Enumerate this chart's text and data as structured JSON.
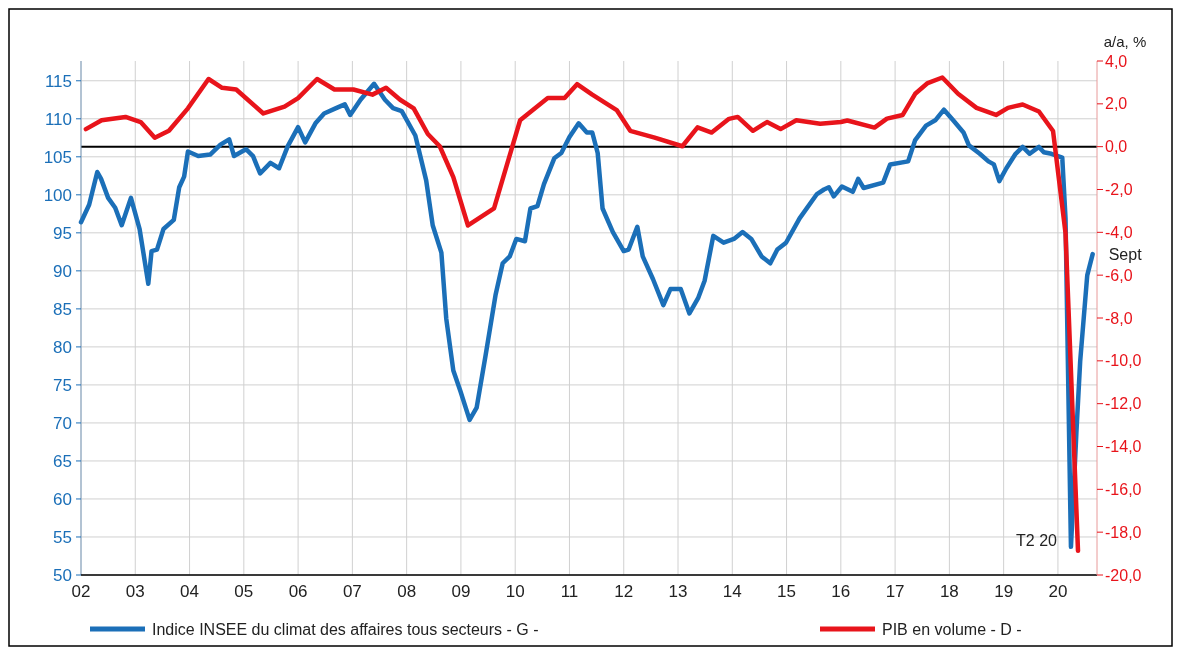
{
  "chart_data": {
    "type": "line",
    "y2label": "a/a, %",
    "xlim": [
      2002,
      2020.72
    ],
    "xticks": [
      {
        "value": 2002,
        "label": "02"
      },
      {
        "value": 2003,
        "label": "03"
      },
      {
        "value": 2004,
        "label": "04"
      },
      {
        "value": 2005,
        "label": "05"
      },
      {
        "value": 2006,
        "label": "06"
      },
      {
        "value": 2007,
        "label": "07"
      },
      {
        "value": 2008,
        "label": "08"
      },
      {
        "value": 2009,
        "label": "09"
      },
      {
        "value": 2010,
        "label": "10"
      },
      {
        "value": 2011,
        "label": "11"
      },
      {
        "value": 2012,
        "label": "12"
      },
      {
        "value": 2013,
        "label": "13"
      },
      {
        "value": 2014,
        "label": "14"
      },
      {
        "value": 2015,
        "label": "15"
      },
      {
        "value": 2016,
        "label": "16"
      },
      {
        "value": 2017,
        "label": "17"
      },
      {
        "value": 2018,
        "label": "18"
      },
      {
        "value": 2019,
        "label": "19"
      },
      {
        "value": 2020,
        "label": "20"
      }
    ],
    "ylim": [
      50,
      117.6
    ],
    "yticks": [
      50,
      55,
      60,
      65,
      70,
      75,
      80,
      85,
      90,
      95,
      100,
      105,
      110,
      115
    ],
    "y2lim": [
      -20,
      4
    ],
    "y2ticks": [
      {
        "value": -20,
        "label": "-20,0"
      },
      {
        "value": -18,
        "label": "-18,0"
      },
      {
        "value": -16,
        "label": "-16,0"
      },
      {
        "value": -14,
        "label": "-14,0"
      },
      {
        "value": -12,
        "label": "-12,0"
      },
      {
        "value": -10,
        "label": "-10,0"
      },
      {
        "value": -8,
        "label": "-8,0"
      },
      {
        "value": -6,
        "label": "-6,0"
      },
      {
        "value": -4,
        "label": "-4,0"
      },
      {
        "value": -2,
        "label": "-2,0"
      },
      {
        "value": 0,
        "label": "0,0"
      },
      {
        "value": 2,
        "label": "2,0"
      },
      {
        "value": 4,
        "label": "4,0"
      }
    ],
    "grid": true,
    "legend": "bottom",
    "ref_lines": [
      {
        "axis": "y2",
        "value": 0,
        "color": "#000000"
      }
    ],
    "annotations": [
      {
        "text": "Sept",
        "x": 2020.64,
        "y": 92.2
      },
      {
        "text": "T2 20",
        "x": 2020.24,
        "y": 53.7
      }
    ],
    "series": [
      {
        "name": "Indice INSEE du climat des affaires tous secteurs - G -",
        "color": "#1b6fb8",
        "x": [
          2002.0,
          2002.15,
          2002.3,
          2002.37,
          2002.5,
          2002.63,
          2002.75,
          2002.92,
          2003.08,
          2003.24,
          2003.3,
          2003.4,
          2003.52,
          2003.71,
          2003.81,
          2003.9,
          2003.97,
          2004.16,
          2004.38,
          2004.57,
          2004.73,
          2004.82,
          2005.04,
          2005.17,
          2005.3,
          2005.49,
          2005.65,
          2005.81,
          2006.0,
          2006.13,
          2006.32,
          2006.48,
          2006.7,
          2006.86,
          2006.96,
          2007.15,
          2007.4,
          2007.6,
          2007.75,
          2007.91,
          2008.16,
          2008.36,
          2008.48,
          2008.64,
          2008.73,
          2008.86,
          2008.99,
          2009.16,
          2009.29,
          2009.45,
          2009.64,
          2009.77,
          2009.9,
          2010.02,
          2010.18,
          2010.28,
          2010.41,
          2010.53,
          2010.72,
          2010.85,
          2011.0,
          2011.17,
          2011.32,
          2011.42,
          2011.52,
          2011.61,
          2011.8,
          2012.0,
          2012.09,
          2012.25,
          2012.35,
          2012.54,
          2012.73,
          2012.86,
          2013.05,
          2013.21,
          2013.37,
          2013.49,
          2013.65,
          2013.84,
          2014.03,
          2014.19,
          2014.35,
          2014.54,
          2014.7,
          2014.83,
          2014.99,
          2015.24,
          2015.56,
          2015.69,
          2015.78,
          2015.87,
          2016.02,
          2016.22,
          2016.32,
          2016.42,
          2016.78,
          2016.91,
          2017.24,
          2017.37,
          2017.57,
          2017.74,
          2017.9,
          2018.07,
          2018.26,
          2018.36,
          2018.56,
          2018.72,
          2018.82,
          2018.92,
          2019.05,
          2019.22,
          2019.35,
          2019.48,
          2019.65,
          2019.74,
          2019.88,
          2020.08,
          2020.14,
          2020.24,
          2020.34,
          2020.41,
          2020.54,
          2020.64
        ],
        "values": [
          96.4,
          98.7,
          103.0,
          102.1,
          99.6,
          98.3,
          96.0,
          99.6,
          95.5,
          88.3,
          92.6,
          92.8,
          95.5,
          96.7,
          101.0,
          102.4,
          105.7,
          105.1,
          105.3,
          106.6,
          107.3,
          105.1,
          106.0,
          105.1,
          102.8,
          104.2,
          103.5,
          106.4,
          108.9,
          106.9,
          109.4,
          110.7,
          111.4,
          111.9,
          110.5,
          112.5,
          114.6,
          112.5,
          111.4,
          111.0,
          107.8,
          101.9,
          96.0,
          92.4,
          83.7,
          76.9,
          74.2,
          70.4,
          72.0,
          78.7,
          86.9,
          91.0,
          91.9,
          94.2,
          93.9,
          98.2,
          98.5,
          101.4,
          104.8,
          105.5,
          107.6,
          109.4,
          108.2,
          108.2,
          105.5,
          98.2,
          95.1,
          92.6,
          92.8,
          95.8,
          91.9,
          88.9,
          85.5,
          87.6,
          87.6,
          84.4,
          86.4,
          88.7,
          94.6,
          93.7,
          94.2,
          95.1,
          94.2,
          91.9,
          91.0,
          92.8,
          93.7,
          96.9,
          100.1,
          100.7,
          101.0,
          99.8,
          101.1,
          100.4,
          102.1,
          100.9,
          101.6,
          104.0,
          104.4,
          107.2,
          109.1,
          109.8,
          111.2,
          109.8,
          108.2,
          106.5,
          105.4,
          104.4,
          104.0,
          101.8,
          103.5,
          105.4,
          106.3,
          105.4,
          106.3,
          105.6,
          105.4,
          104.9,
          96.9,
          53.7,
          68.7,
          78.1,
          89.4,
          92.2
        ]
      },
      {
        "name": "PIB en volume - D -",
        "color": "#e8141b",
        "axis": "y2",
        "x": [
          2002.09,
          2002.38,
          2002.82,
          2003.1,
          2003.36,
          2003.62,
          2003.97,
          2004.35,
          2004.6,
          2004.86,
          2005.36,
          2005.75,
          2006.0,
          2006.35,
          2006.67,
          2007.02,
          2007.37,
          2007.62,
          2007.88,
          2008.13,
          2008.39,
          2008.61,
          2008.86,
          2009.13,
          2009.61,
          2010.09,
          2010.6,
          2010.91,
          2011.14,
          2011.42,
          2011.87,
          2012.12,
          2012.57,
          2013.08,
          2013.36,
          2013.62,
          2013.94,
          2014.1,
          2014.38,
          2014.64,
          2014.89,
          2015.18,
          2015.62,
          2016.0,
          2016.12,
          2016.62,
          2016.85,
          2017.14,
          2017.37,
          2017.6,
          2017.87,
          2018.16,
          2018.5,
          2018.86,
          2019.08,
          2019.35,
          2019.65,
          2019.91,
          2020.14,
          2020.37
        ],
        "values": [
          0.82,
          1.23,
          1.39,
          1.15,
          0.42,
          0.74,
          1.79,
          3.16,
          2.75,
          2.67,
          1.55,
          1.87,
          2.27,
          3.16,
          2.67,
          2.67,
          2.43,
          2.75,
          2.19,
          1.79,
          0.59,
          0.02,
          -1.42,
          -3.68,
          -2.88,
          1.23,
          2.27,
          2.27,
          2.92,
          2.43,
          1.71,
          0.74,
          0.42,
          0.02,
          0.9,
          0.66,
          1.3,
          1.39,
          0.74,
          1.15,
          0.82,
          1.23,
          1.07,
          1.15,
          1.22,
          0.89,
          1.31,
          1.48,
          2.47,
          2.97,
          3.23,
          2.47,
          1.81,
          1.48,
          1.81,
          1.97,
          1.64,
          0.73,
          -4.03,
          -18.87
        ]
      }
    ]
  }
}
